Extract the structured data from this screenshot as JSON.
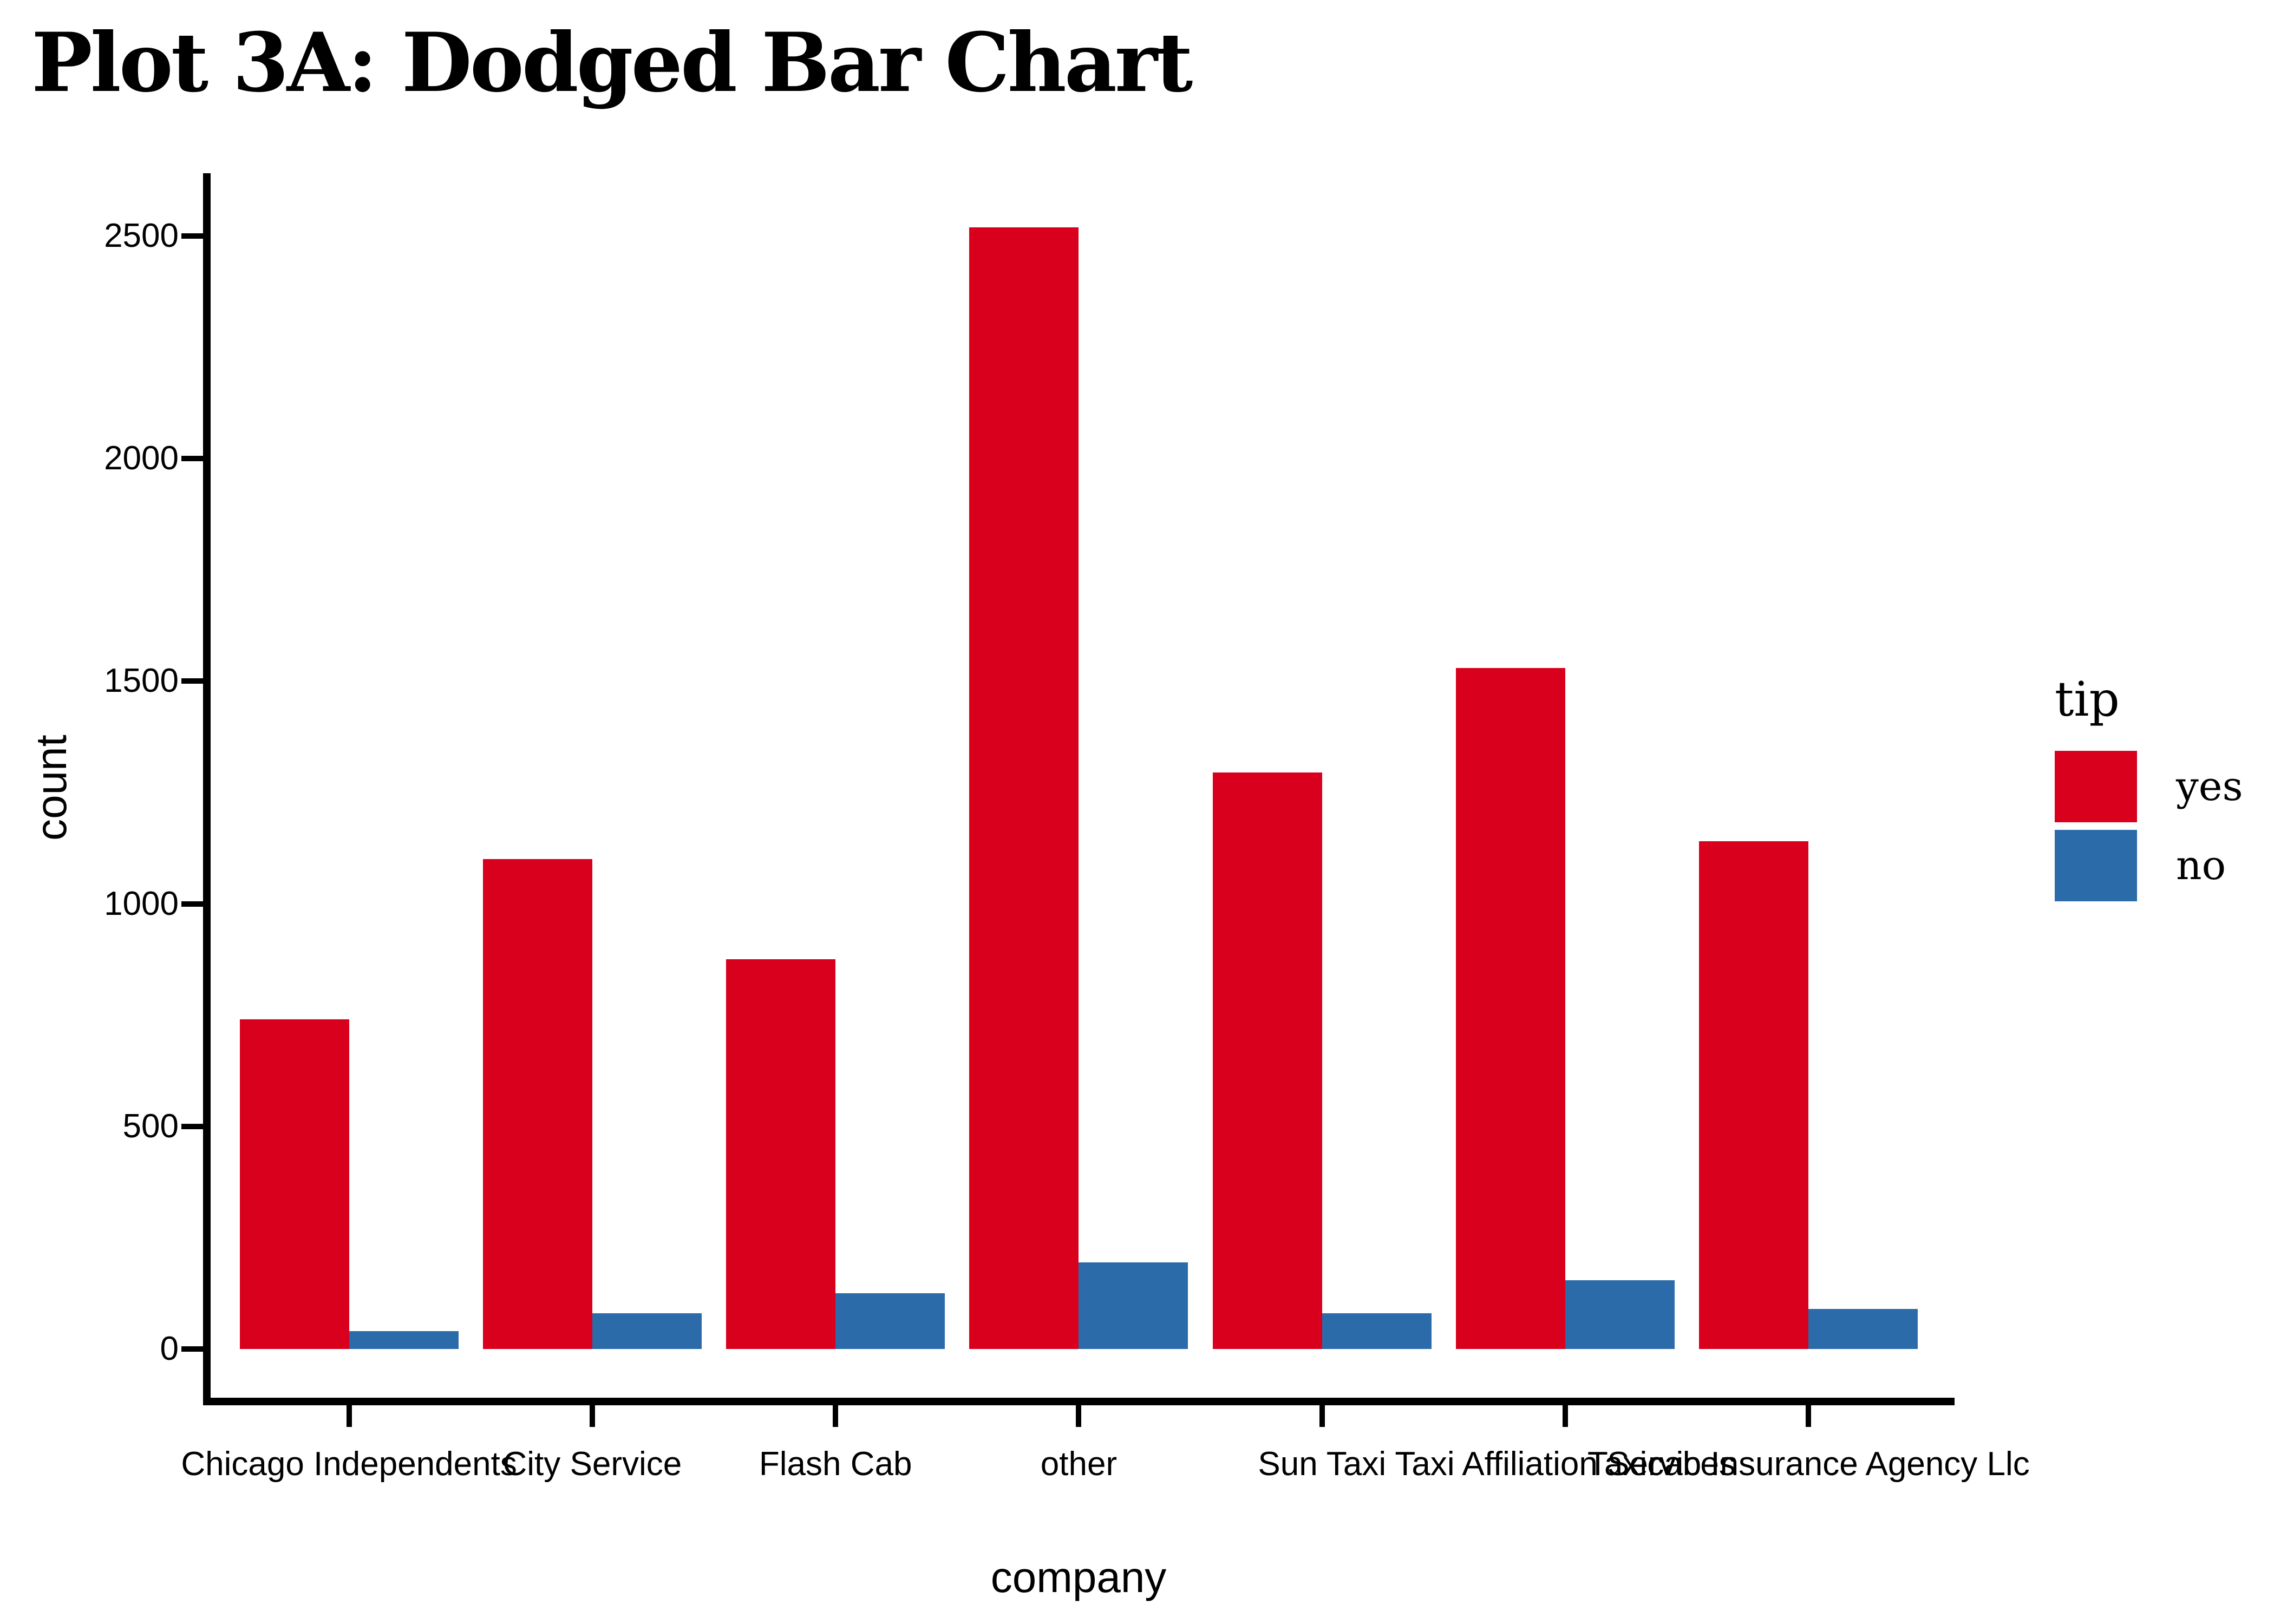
{
  "title": "Plot 3A: Dodged Bar Chart",
  "chart_data": {
    "type": "bar",
    "mode": "dodged",
    "title": "Plot 3A: Dodged Bar Chart",
    "xlabel": "company",
    "ylabel": "count",
    "categories": [
      "Chicago Independents",
      "City Service",
      "Flash Cab",
      "other",
      "Sun Taxi",
      "Taxi Affiliation Services",
      "Taxicab Insurance Agency Llc"
    ],
    "series": [
      {
        "name": "yes",
        "color": "#D8001C",
        "values": [
          740,
          1100,
          875,
          2520,
          1295,
          1530,
          1140
        ]
      },
      {
        "name": "no",
        "color": "#2C6BAA",
        "values": [
          40,
          80,
          125,
          195,
          80,
          155,
          90
        ]
      }
    ],
    "y_ticks": [
      0,
      500,
      1000,
      1500,
      2000,
      2500
    ],
    "ylim": [
      0,
      2625
    ],
    "grid": false,
    "legend_title": "tip",
    "legend_position": "right"
  },
  "legend": {
    "title": "tip",
    "items": [
      {
        "label": "yes",
        "color": "#D8001C"
      },
      {
        "label": "no",
        "color": "#2C6BAA"
      }
    ]
  },
  "colors": {
    "axis": "#000000",
    "text": "#000000",
    "background": "#ffffff"
  }
}
